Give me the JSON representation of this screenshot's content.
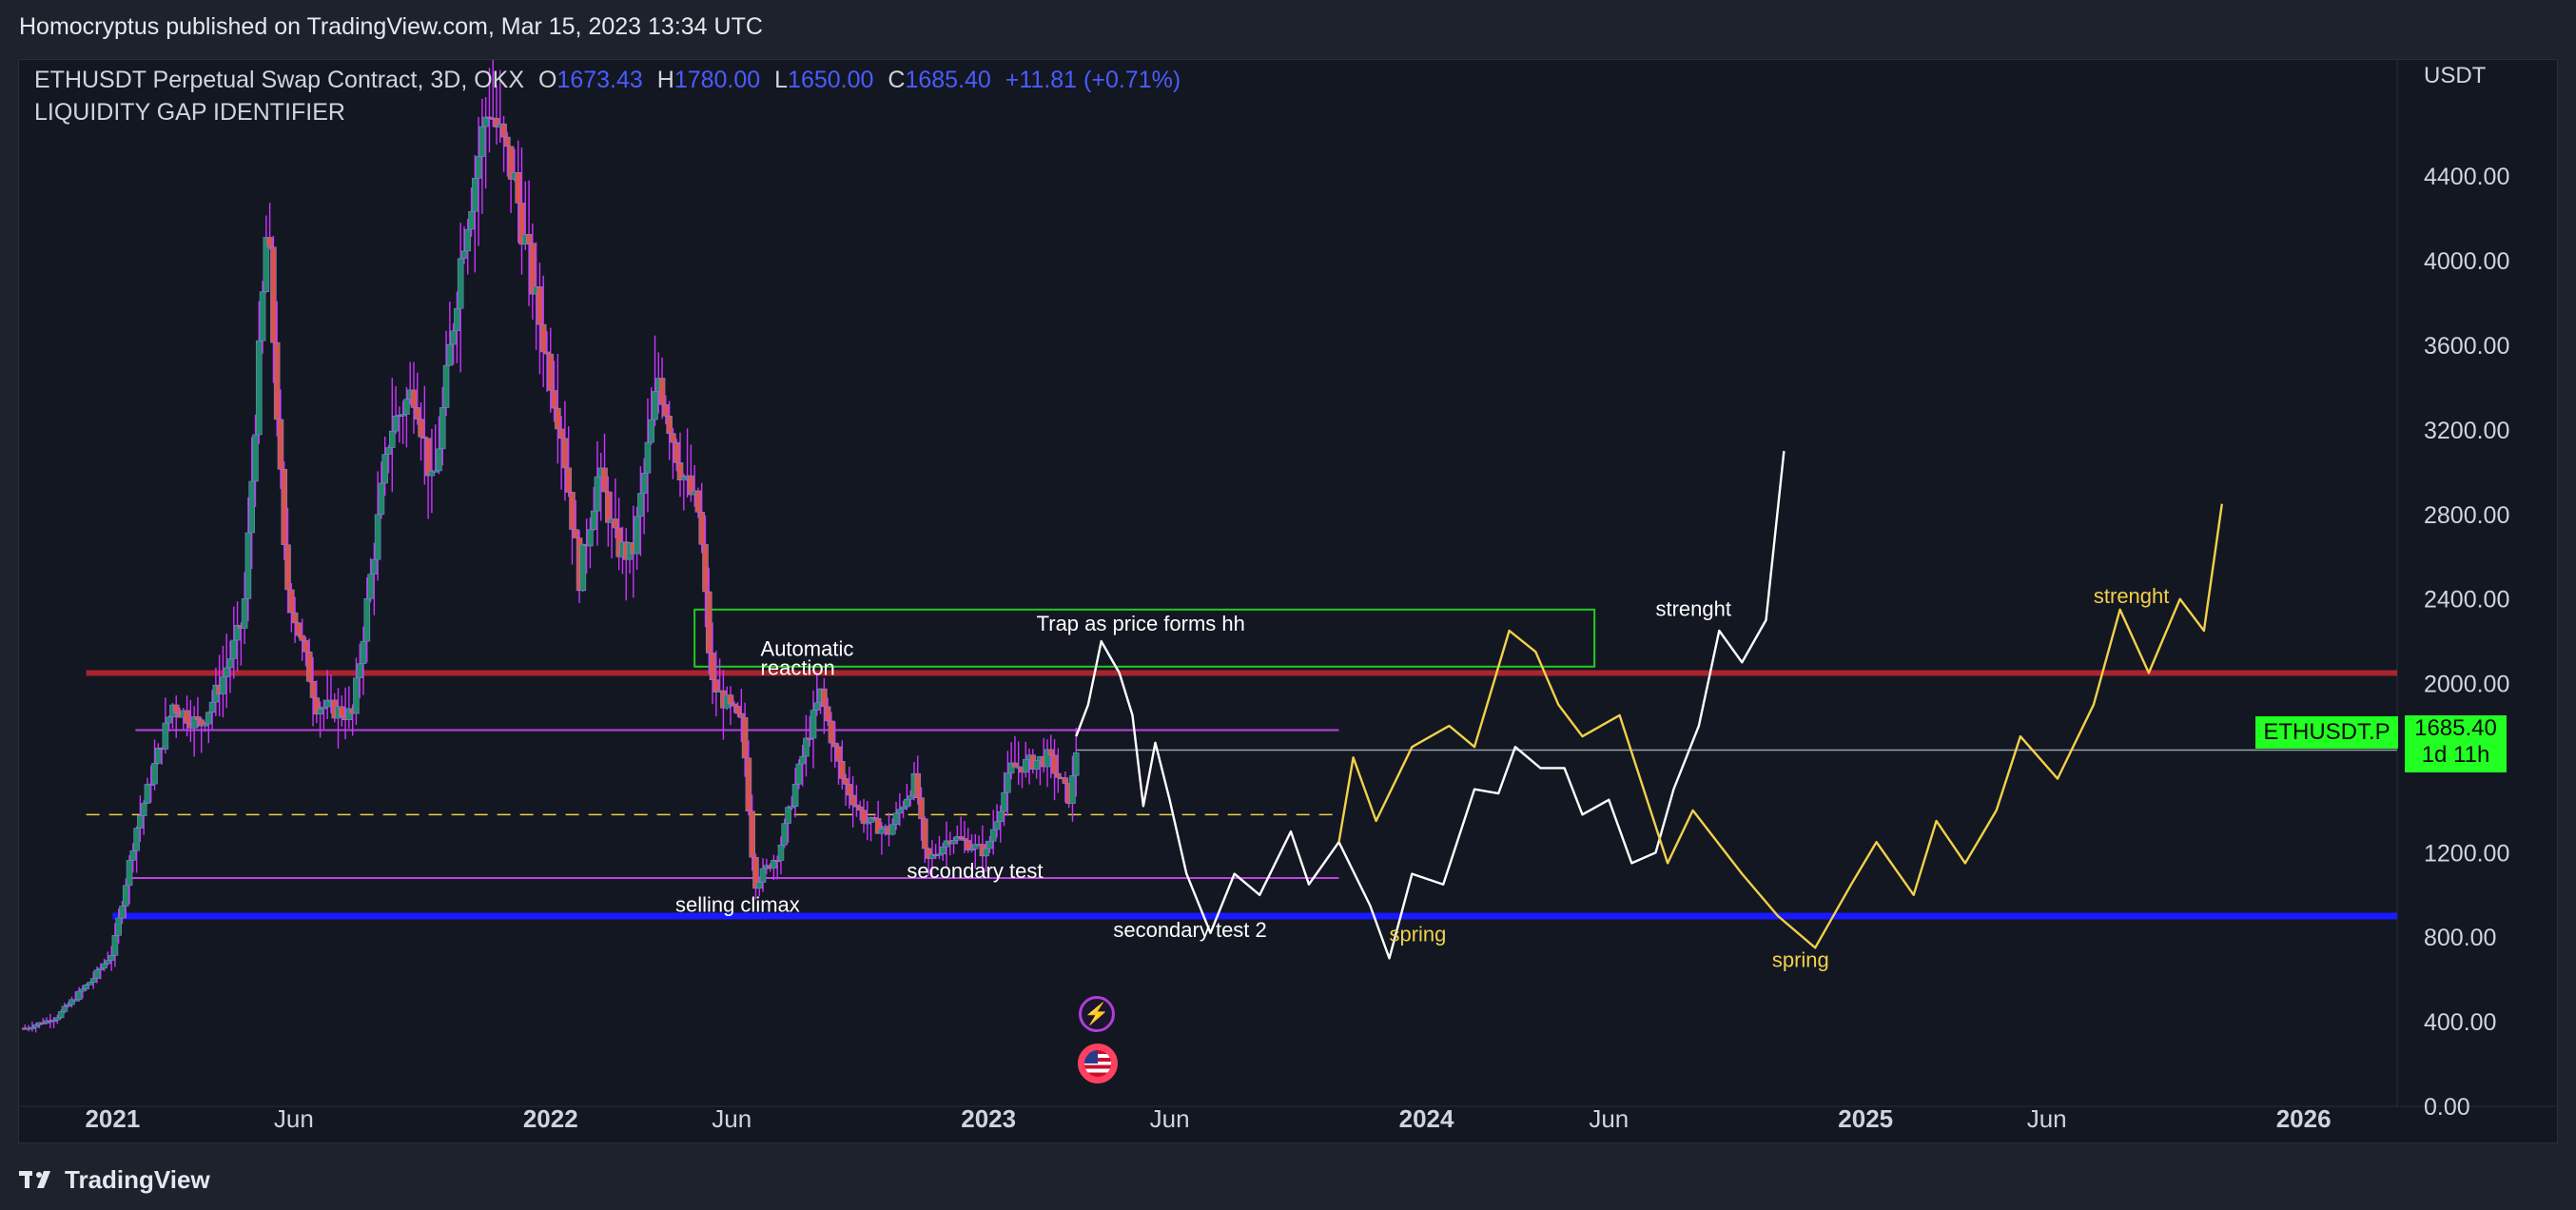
{
  "header": {
    "published": "Homocryptus published on TradingView.com, Mar 15, 2023 13:34 UTC"
  },
  "legend": {
    "symbol": "ETHUSDT Perpetual Swap Contract, 3D, OKX",
    "open_label": "O",
    "open": "1673.43",
    "high_label": "H",
    "high": "1780.00",
    "low_label": "L",
    "low": "1650.00",
    "close_label": "C",
    "close": "1685.40",
    "change": "+11.81 (+0.71%)",
    "indicator": "LIQUIDITY GAP IDENTIFIER"
  },
  "price_scale": {
    "unit": "USDT"
  },
  "last_price": {
    "symbol": "ETHUSDT.P",
    "price": "1685.40",
    "countdown": "1d 11h",
    "color": "#22ff22"
  },
  "footer": {
    "brand": "TradingView"
  },
  "events": {
    "icons": [
      "lightning-icon",
      "us-flag-icon"
    ]
  },
  "colors": {
    "background": "#131722",
    "bull": "#1f8a66",
    "bear": "#d9534f",
    "wick": "#cc33ff",
    "blue_level": "#1a1aff",
    "red_level": "#a8242e",
    "green_box": "#22cc22",
    "white_projection": "#ffffff",
    "yellow_projection": "#f2d14a",
    "purple_lines": "#bb44dd"
  },
  "chart_data": {
    "type": "candlestick",
    "timeframe": "3D",
    "y_ticks": [
      0,
      400,
      800,
      1200,
      1600,
      2000,
      2400,
      2800,
      3200,
      3600,
      4000,
      4400
    ],
    "y_tick_labels": [
      "0.00",
      "400.00",
      "800.00",
      "1200.00",
      "",
      "2000.00",
      "2400.00",
      "2800.00",
      "3200.00",
      "3600.00",
      "4000.00",
      "4400.00"
    ],
    "ylim": [
      0,
      4950
    ],
    "x_ticks": [
      {
        "date": "2021-01-01",
        "label": "2021"
      },
      {
        "date": "2021-06-01",
        "label": "Jun"
      },
      {
        "date": "2022-01-01",
        "label": "2022"
      },
      {
        "date": "2022-06-01",
        "label": "Jun"
      },
      {
        "date": "2023-01-01",
        "label": "2023"
      },
      {
        "date": "2023-06-01",
        "label": "Jun"
      },
      {
        "date": "2024-01-01",
        "label": "2024"
      },
      {
        "date": "2024-06-01",
        "label": "Jun"
      },
      {
        "date": "2025-01-01",
        "label": "2025"
      },
      {
        "date": "2025-06-01",
        "label": "Jun"
      },
      {
        "date": "2026-01-01",
        "label": "2026"
      }
    ],
    "xlim": [
      "2020-10-15",
      "2026-03-20"
    ],
    "price_series": [
      [
        "2020-10-20",
        370
      ],
      [
        "2020-11-15",
        420
      ],
      [
        "2020-12-15",
        600
      ],
      [
        "2021-01-01",
        730
      ],
      [
        "2021-01-20",
        1300
      ],
      [
        "2021-02-20",
        1900
      ],
      [
        "2021-03-15",
        1800
      ],
      [
        "2021-04-01",
        2000
      ],
      [
        "2021-04-20",
        2300
      ],
      [
        "2021-05-10",
        4200
      ],
      [
        "2021-05-25",
        2500
      ],
      [
        "2021-06-20",
        1900
      ],
      [
        "2021-07-20",
        1850
      ],
      [
        "2021-08-20",
        3200
      ],
      [
        "2021-09-10",
        3400
      ],
      [
        "2021-09-25",
        2900
      ],
      [
        "2021-10-20",
        4100
      ],
      [
        "2021-11-10",
        4750
      ],
      [
        "2021-12-01",
        4400
      ],
      [
        "2021-12-20",
        3800
      ],
      [
        "2022-01-10",
        3200
      ],
      [
        "2022-01-25",
        2500
      ],
      [
        "2022-02-10",
        3000
      ],
      [
        "2022-02-25",
        2650
      ],
      [
        "2022-03-10",
        2600
      ],
      [
        "2022-04-01",
        3450
      ],
      [
        "2022-04-20",
        3000
      ],
      [
        "2022-05-05",
        2800
      ],
      [
        "2022-05-15",
        2000
      ],
      [
        "2022-06-10",
        1800
      ],
      [
        "2022-06-20",
        1050
      ],
      [
        "2022-07-10",
        1200
      ],
      [
        "2022-08-01",
        1700
      ],
      [
        "2022-08-14",
        1950
      ],
      [
        "2022-09-01",
        1550
      ],
      [
        "2022-09-20",
        1350
      ],
      [
        "2022-10-10",
        1300
      ],
      [
        "2022-11-01",
        1550
      ],
      [
        "2022-11-10",
        1150
      ],
      [
        "2022-12-01",
        1280
      ],
      [
        "2022-12-30",
        1200
      ],
      [
        "2023-01-20",
        1600
      ],
      [
        "2023-02-20",
        1650
      ],
      [
        "2023-03-10",
        1450
      ],
      [
        "2023-03-15",
        1685
      ]
    ],
    "levels": [
      {
        "name": "blue-support",
        "price": 900,
        "color": "#1a1aff",
        "from": "2021-01-01",
        "to": "2026-03-20"
      },
      {
        "name": "red-resistance",
        "price": 2050,
        "color": "#a8242e",
        "from": "2020-12-10",
        "to": "2026-03-20"
      },
      {
        "name": "last-price",
        "price": 1685,
        "color": "#9aa0aa",
        "from": "2023-03-15",
        "to": "2026-03-20"
      },
      {
        "name": "yellow-dashed",
        "price": 1380,
        "color": "#e6d14a",
        "from": "2020-12-10",
        "to": "2023-10-20"
      },
      {
        "name": "purple-upper",
        "price": 1780,
        "color": "#bb44dd",
        "from": "2021-01-20",
        "to": "2023-10-20"
      },
      {
        "name": "purple-lower",
        "price": 1080,
        "color": "#bb44dd",
        "from": "2021-01-15",
        "to": "2023-10-20"
      }
    ],
    "trap_box": {
      "from": "2022-05-01",
      "to": "2024-05-20",
      "low": 2080,
      "high": 2350
    },
    "white_projection": [
      [
        "2023-03-15",
        1750
      ],
      [
        "2023-03-25",
        1900
      ],
      [
        "2023-04-05",
        2200
      ],
      [
        "2023-04-20",
        2050
      ],
      [
        "2023-05-01",
        1850
      ],
      [
        "2023-05-10",
        1420
      ],
      [
        "2023-05-20",
        1720
      ],
      [
        "2023-06-01",
        1450
      ],
      [
        "2023-06-15",
        1100
      ],
      [
        "2023-07-05",
        820
      ],
      [
        "2023-07-25",
        1100
      ],
      [
        "2023-08-15",
        1000
      ],
      [
        "2023-09-10",
        1300
      ],
      [
        "2023-09-25",
        1050
      ],
      [
        "2023-10-20",
        1250
      ],
      [
        "2023-11-15",
        950
      ],
      [
        "2023-12-01",
        700
      ],
      [
        "2023-12-20",
        1100
      ],
      [
        "2024-01-15",
        1050
      ],
      [
        "2024-02-10",
        1500
      ],
      [
        "2024-03-01",
        1480
      ],
      [
        "2024-03-15",
        1700
      ],
      [
        "2024-04-05",
        1600
      ],
      [
        "2024-04-25",
        1600
      ],
      [
        "2024-05-10",
        1380
      ],
      [
        "2024-06-01",
        1450
      ],
      [
        "2024-06-20",
        1150
      ],
      [
        "2024-07-10",
        1200
      ],
      [
        "2024-07-25",
        1500
      ],
      [
        "2024-08-15",
        1800
      ],
      [
        "2024-09-01",
        2250
      ],
      [
        "2024-09-20",
        2100
      ],
      [
        "2024-10-10",
        2300
      ],
      [
        "2024-10-25",
        3100
      ]
    ],
    "yellow_projection": [
      [
        "2023-10-20",
        1250
      ],
      [
        "2023-11-01",
        1650
      ],
      [
        "2023-11-20",
        1350
      ],
      [
        "2023-12-20",
        1700
      ],
      [
        "2024-01-20",
        1800
      ],
      [
        "2024-02-10",
        1700
      ],
      [
        "2024-03-10",
        2250
      ],
      [
        "2024-04-01",
        2150
      ],
      [
        "2024-04-20",
        1900
      ],
      [
        "2024-05-10",
        1750
      ],
      [
        "2024-06-10",
        1850
      ],
      [
        "2024-07-20",
        1150
      ],
      [
        "2024-08-10",
        1400
      ],
      [
        "2024-09-20",
        1100
      ],
      [
        "2024-10-20",
        900
      ],
      [
        "2024-11-20",
        750
      ],
      [
        "2024-12-20",
        1050
      ],
      [
        "2025-01-10",
        1250
      ],
      [
        "2025-02-10",
        1000
      ],
      [
        "2025-03-01",
        1350
      ],
      [
        "2025-03-25",
        1150
      ],
      [
        "2025-04-20",
        1400
      ],
      [
        "2025-05-10",
        1750
      ],
      [
        "2025-06-10",
        1550
      ],
      [
        "2025-07-10",
        1900
      ],
      [
        "2025-08-01",
        2350
      ],
      [
        "2025-08-25",
        2050
      ],
      [
        "2025-09-20",
        2400
      ],
      [
        "2025-10-10",
        2250
      ],
      [
        "2025-10-25",
        2850
      ]
    ],
    "annotations": [
      {
        "text": "Automatic",
        "date": "2022-06-25",
        "price": 2130,
        "color": "#ffffff"
      },
      {
        "text": "reaction",
        "date": "2022-06-25",
        "price": 2040,
        "color": "#ffffff"
      },
      {
        "text": "Trap as price forms hh",
        "date": "2023-02-10",
        "price": 2250,
        "color": "#ffffff"
      },
      {
        "text": "selling climax",
        "date": "2022-04-15",
        "price": 920,
        "color": "#ffffff"
      },
      {
        "text": "secondary test",
        "date": "2022-10-25",
        "price": 1080,
        "color": "#ffffff"
      },
      {
        "text": "secondary test 2",
        "date": "2023-04-15",
        "price": 800,
        "color": "#ffffff"
      },
      {
        "text": "spring",
        "date": "2023-12-01",
        "price": 780,
        "color": "#f2d14a"
      },
      {
        "text": "strenght",
        "date": "2024-07-10",
        "price": 2320,
        "color": "#ffffff"
      },
      {
        "text": "spring",
        "date": "2024-10-15",
        "price": 660,
        "color": "#f2d14a"
      },
      {
        "text": "strenght",
        "date": "2025-07-10",
        "price": 2380,
        "color": "#f2d14a"
      }
    ]
  }
}
